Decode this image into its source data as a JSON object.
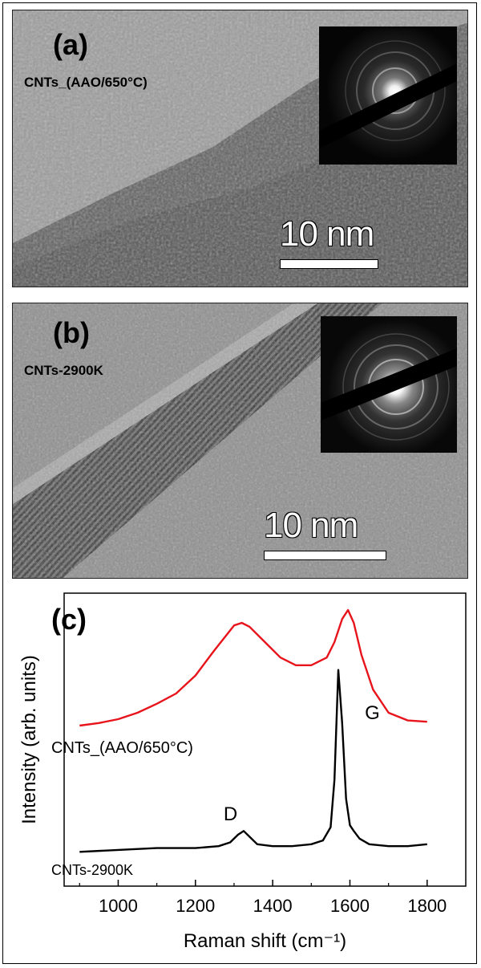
{
  "panel_a": {
    "label": "(a)",
    "sample": "CNTs_(AAO/650°C)",
    "scale_bar": "10 nm",
    "inset_icon": "diffraction-pattern-icon"
  },
  "panel_b": {
    "label": "(b)",
    "sample": "CNTs-2900K",
    "scale_bar": "10 nm",
    "inset_icon": "diffraction-pattern-icon"
  },
  "chart_data": {
    "type": "line",
    "panel_label": "(c)",
    "xlabel": "Raman shift (cm⁻¹)",
    "ylabel": "Intensity (arb. units)",
    "xlim": [
      860,
      1900
    ],
    "xticks": [
      1000,
      1200,
      1400,
      1600,
      1800
    ],
    "grid": false,
    "annotations": [
      {
        "text": "D",
        "x": 1320
      },
      {
        "text": "G",
        "x": 1600
      }
    ],
    "series": [
      {
        "name": "CNTs_(AAO/650°C)",
        "color": "#e8141c",
        "x": [
          900,
          950,
          1000,
          1050,
          1100,
          1150,
          1200,
          1250,
          1300,
          1320,
          1340,
          1380,
          1420,
          1460,
          1500,
          1540,
          1560,
          1580,
          1595,
          1610,
          1630,
          1660,
          1700,
          1750,
          1800
        ],
        "y": [
          0.05,
          0.07,
          0.1,
          0.15,
          0.22,
          0.3,
          0.44,
          0.64,
          0.83,
          0.85,
          0.82,
          0.7,
          0.58,
          0.52,
          0.52,
          0.58,
          0.7,
          0.88,
          0.95,
          0.85,
          0.6,
          0.33,
          0.15,
          0.09,
          0.08
        ]
      },
      {
        "name": "CNTs-2900K",
        "color": "#000000",
        "x": [
          900,
          1000,
          1100,
          1200,
          1260,
          1290,
          1310,
          1325,
          1340,
          1360,
          1400,
          1450,
          1500,
          1530,
          1550,
          1560,
          1570,
          1580,
          1590,
          1600,
          1610,
          1625,
          1650,
          1700,
          1750,
          1800
        ],
        "y": [
          0.02,
          0.03,
          0.04,
          0.04,
          0.05,
          0.07,
          0.11,
          0.13,
          0.1,
          0.06,
          0.05,
          0.05,
          0.06,
          0.08,
          0.15,
          0.4,
          0.98,
          0.7,
          0.3,
          0.16,
          0.13,
          0.09,
          0.06,
          0.05,
          0.05,
          0.06
        ]
      }
    ]
  }
}
